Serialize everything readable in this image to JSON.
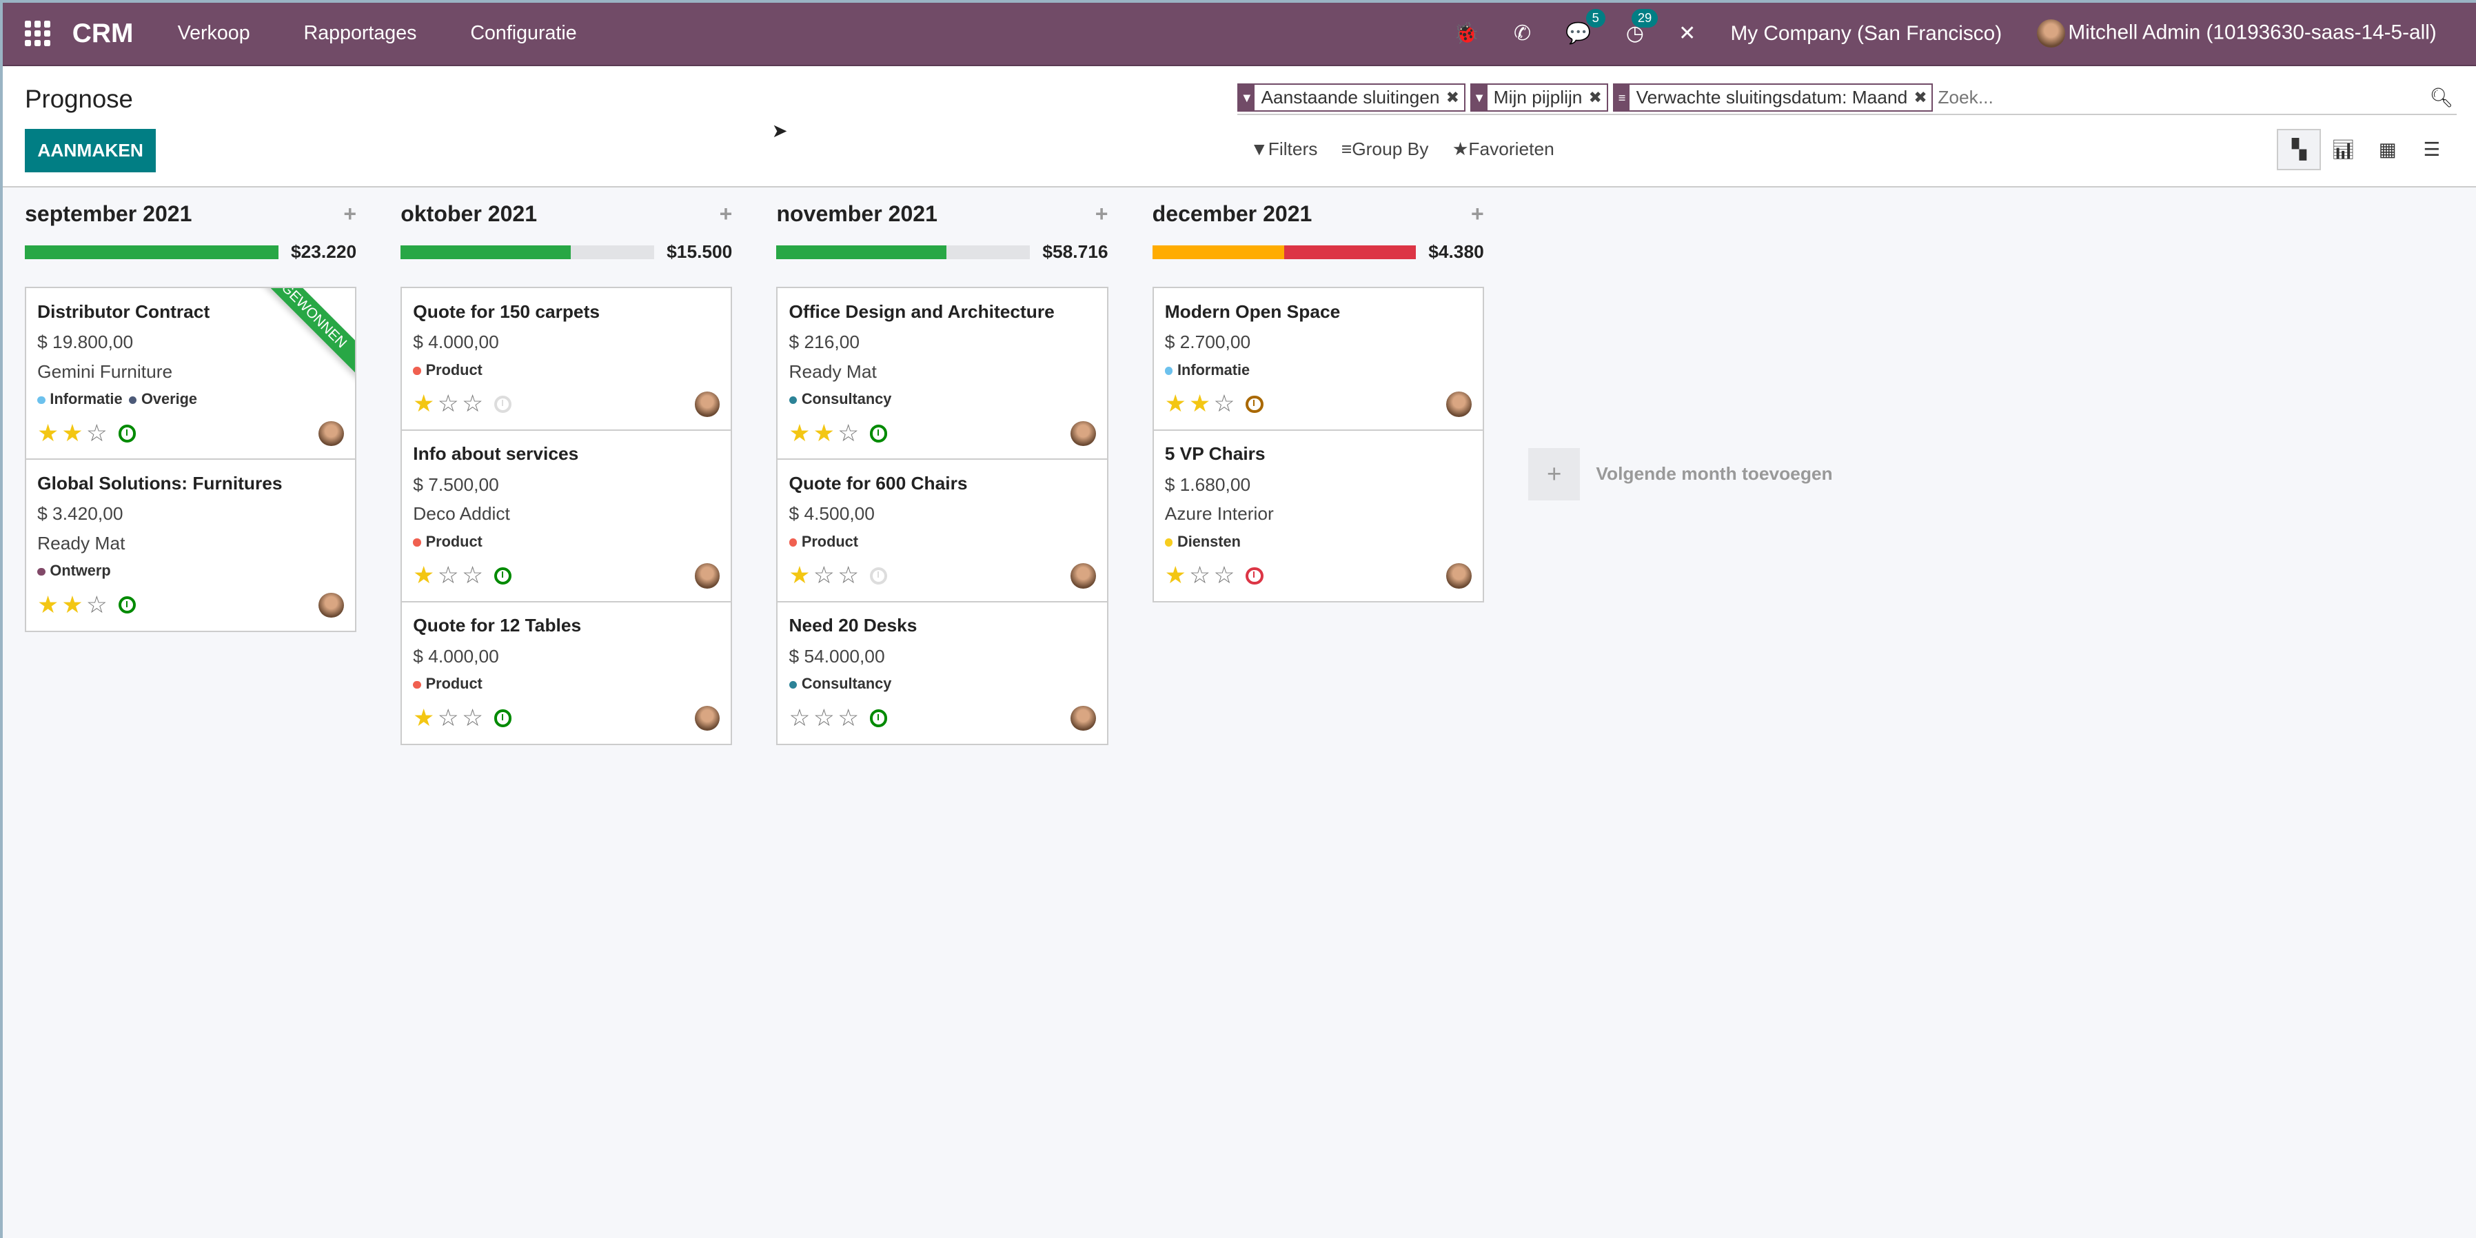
{
  "navbar": {
    "app": "CRM",
    "menus": [
      "Verkoop",
      "Rapportages",
      "Configuratie"
    ],
    "messages_count": "5",
    "activities_count": "29",
    "company": "My Company (San Francisco)",
    "user": "Mitchell Admin (10193630-saas-14-5-all)",
    "color": "#714b67"
  },
  "control": {
    "title": "Prognose",
    "create_label": "AANMAKEN",
    "facets": [
      {
        "icon": "filter-icon",
        "label": "Aanstaande sluitingen"
      },
      {
        "icon": "filter-icon",
        "label": "Mijn pijplijn"
      },
      {
        "icon": "group-icon",
        "label": "Verwachte sluitingsdatum: Maand"
      }
    ],
    "search_placeholder": "Zoek...",
    "filters": "Filters",
    "group_by": "Group By",
    "favorites": "Favorieten"
  },
  "columns": [
    {
      "title": "september 2021",
      "total": "$23.220",
      "progress": [
        {
          "color": "#28a745",
          "pct": 100
        }
      ],
      "cards": [
        {
          "name": "Distributor Contract",
          "amount": "$ 19.800,00",
          "partner": "Gemini Furniture",
          "tags": [
            {
              "label": "Informatie",
              "color": "#6cc1ed"
            },
            {
              "label": "Overige",
              "color": "#4c5a78"
            }
          ],
          "stars": 2,
          "activity": "#008a00",
          "ribbon": "GEWONNEN"
        },
        {
          "name": "Global Solutions: Furnitures",
          "amount": "$ 3.420,00",
          "partner": "Ready Mat",
          "tags": [
            {
              "label": "Ontwerp",
              "color": "#814968"
            }
          ],
          "stars": 2,
          "activity": "#008a00"
        }
      ]
    },
    {
      "title": "oktober 2021",
      "total": "$15.500",
      "progress": [
        {
          "color": "#28a745",
          "pct": 67
        }
      ],
      "cards": [
        {
          "name": "Quote for 150 carpets",
          "amount": "$ 4.000,00",
          "tags": [
            {
              "label": "Product",
              "color": "#f06050"
            }
          ],
          "stars": 1,
          "activity": "#dddddd"
        },
        {
          "name": "Info about services",
          "amount": "$ 7.500,00",
          "partner": "Deco Addict",
          "tags": [
            {
              "label": "Product",
              "color": "#f06050"
            }
          ],
          "stars": 1,
          "activity": "#008a00"
        },
        {
          "name": "Quote for 12 Tables",
          "amount": "$ 4.000,00",
          "tags": [
            {
              "label": "Product",
              "color": "#f06050"
            }
          ],
          "stars": 1,
          "activity": "#008a00"
        }
      ]
    },
    {
      "title": "november 2021",
      "total": "$58.716",
      "progress": [
        {
          "color": "#28a745",
          "pct": 67
        }
      ],
      "cards": [
        {
          "name": "Office Design and Architecture",
          "amount": "$ 216,00",
          "partner": "Ready Mat",
          "tags": [
            {
              "label": "Consultancy",
              "color": "#2c8397"
            }
          ],
          "stars": 2,
          "activity": "#008a00"
        },
        {
          "name": "Quote for 600 Chairs",
          "amount": "$ 4.500,00",
          "tags": [
            {
              "label": "Product",
              "color": "#f06050"
            }
          ],
          "stars": 1,
          "activity": "#dddddd"
        },
        {
          "name": "Need 20 Desks",
          "amount": "$ 54.000,00",
          "tags": [
            {
              "label": "Consultancy",
              "color": "#2c8397"
            }
          ],
          "stars": 0,
          "activity": "#008a00"
        }
      ]
    },
    {
      "title": "december 2021",
      "total": "$4.380",
      "progress": [
        {
          "color": "#ffac00",
          "pct": 50
        },
        {
          "color": "#dc3545",
          "pct": 50
        }
      ],
      "cards": [
        {
          "name": "Modern Open Space",
          "amount": "$ 2.700,00",
          "tags": [
            {
              "label": "Informatie",
              "color": "#6cc1ed"
            }
          ],
          "stars": 2,
          "activity": "#a96800"
        },
        {
          "name": "5 VP Chairs",
          "amount": "$ 1.680,00",
          "partner": "Azure Interior",
          "tags": [
            {
              "label": "Diensten",
              "color": "#f7cd1f"
            }
          ],
          "stars": 1,
          "activity": "#dc3545"
        }
      ]
    }
  ],
  "add_column_label": "Volgende month toevoegen"
}
